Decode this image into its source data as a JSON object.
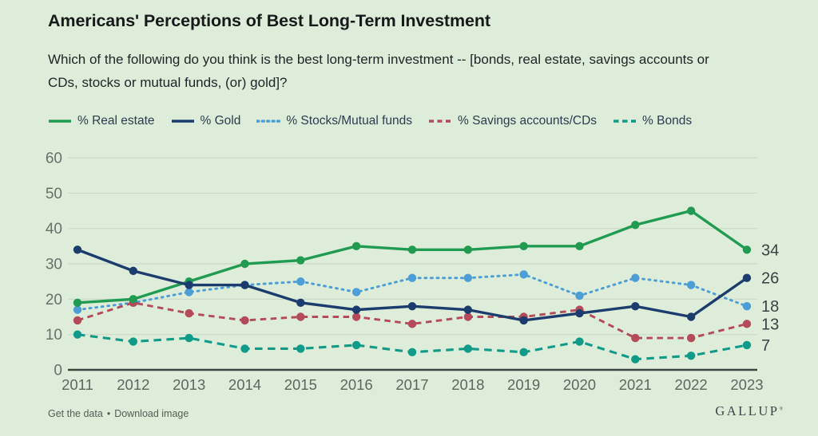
{
  "header": {
    "title": "Americans' Perceptions of Best Long-Term Investment",
    "subtitle_lines": [
      "Which of the following do you think is the best long-term investment -- [bonds, real estate, savings accounts or",
      "CDs, stocks or mutual funds, (or) gold]?"
    ]
  },
  "chart_data": {
    "type": "line",
    "title": "Americans' Perceptions of Best Long-Term Investment",
    "subtitle": "Which of the following do you think is the best long-term investment -- [bonds, real estate, savings accounts or CDs, stocks or mutual funds, (or) gold]?",
    "x": [
      2011,
      2012,
      2013,
      2014,
      2015,
      2016,
      2017,
      2018,
      2019,
      2020,
      2021,
      2022,
      2023
    ],
    "xlabel": "",
    "ylabel": "",
    "ylim": [
      0,
      60
    ],
    "yticks": [
      0,
      10,
      20,
      30,
      40,
      50,
      60
    ],
    "grid": true,
    "legend_position": "top",
    "series": [
      {
        "name": "% Real estate",
        "color": "#209b51",
        "line_style": "solid",
        "values": [
          19,
          20,
          25,
          30,
          31,
          35,
          34,
          34,
          35,
          35,
          41,
          45,
          34
        ],
        "end_label": 34
      },
      {
        "name": "% Gold",
        "color": "#1c3c6e",
        "line_style": "solid",
        "values": [
          34,
          28,
          24,
          24,
          19,
          17,
          18,
          17,
          14,
          16,
          18,
          15,
          26
        ],
        "end_label": 26
      },
      {
        "name": "% Stocks/Mutual funds",
        "color": "#4d9dd6",
        "line_style": "dotted",
        "values": [
          17,
          19,
          22,
          24,
          25,
          22,
          26,
          26,
          27,
          21,
          26,
          24,
          18
        ],
        "end_label": 18
      },
      {
        "name": "% Savings accounts/CDs",
        "color": "#b44a5a",
        "line_style": "dashed",
        "values": [
          14,
          19,
          16,
          14,
          15,
          15,
          13,
          15,
          15,
          17,
          9,
          9,
          13
        ],
        "end_label": 13
      },
      {
        "name": "% Bonds",
        "color": "#0f9a89",
        "line_style": "long-dash",
        "values": [
          10,
          8,
          9,
          6,
          6,
          7,
          5,
          6,
          5,
          8,
          3,
          4,
          7
        ],
        "end_label": 7
      }
    ]
  },
  "footer": {
    "links": [
      "Get the data",
      "Download image"
    ],
    "separator": "•",
    "brand": "GALLUP",
    "brand_mark": "®"
  },
  "colors": {
    "background": "#ddedd9",
    "gridline": "#cbd7c8",
    "axis_line": "#3d423f",
    "tick_label": "#68706a",
    "end_label": "#3b4145"
  }
}
